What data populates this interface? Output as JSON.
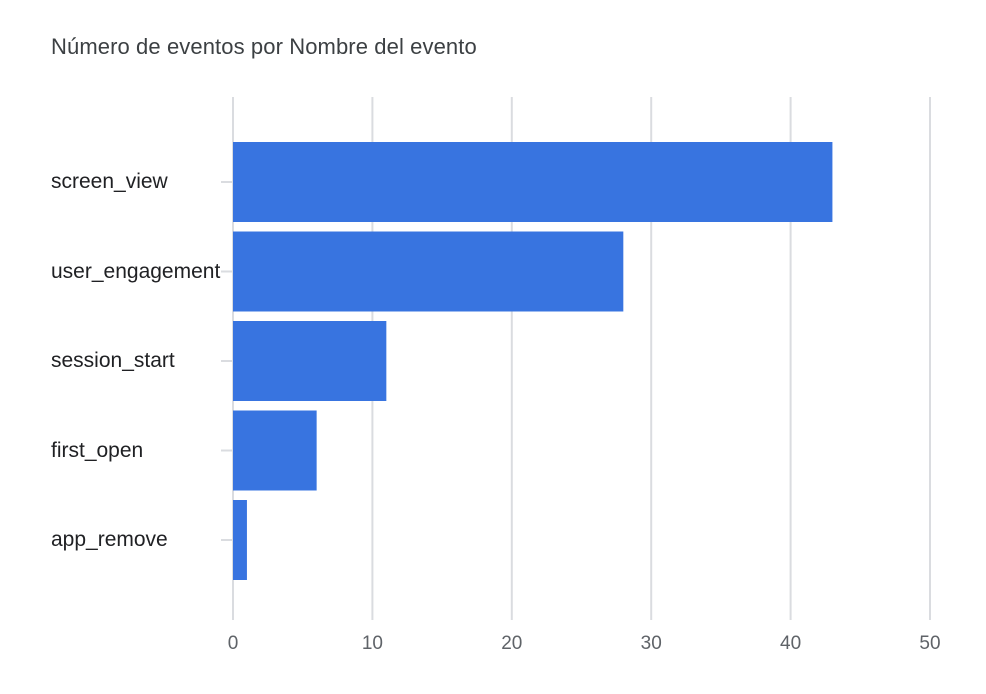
{
  "chart_data": {
    "type": "bar",
    "orientation": "horizontal",
    "title": "Número de eventos por Nombre del evento",
    "xlabel": "",
    "ylabel": "",
    "categories": [
      "screen_view",
      "user_engageme nt",
      "session_start",
      "first_open",
      "app_remove"
    ],
    "values": [
      43,
      28,
      11,
      6,
      1
    ],
    "xlim": [
      0,
      50
    ],
    "xticks": [
      "0",
      "10",
      "20",
      "30",
      "40",
      "50"
    ],
    "grid": true,
    "legend": "none",
    "bar_color": "#3874e0",
    "grid_color": "#dadce0"
  }
}
